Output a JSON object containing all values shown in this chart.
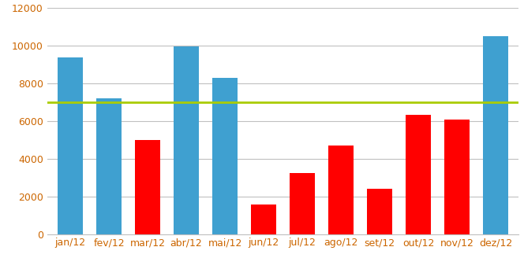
{
  "categories": [
    "jan/12",
    "fev/12",
    "mar/12",
    "abr/12",
    "mai/12",
    "jun/12",
    "jul/12",
    "ago/12",
    "set/12",
    "out/12",
    "nov/12",
    "dez/12"
  ],
  "values": [
    9400,
    7200,
    5000,
    9950,
    8300,
    1550,
    3250,
    4700,
    2400,
    6350,
    6100,
    10500
  ],
  "target": 7000,
  "color_above": "#3FA0D0",
  "color_below": "#FF0000",
  "target_color": "#AACC00",
  "ylim": [
    0,
    12000
  ],
  "yticks": [
    0,
    2000,
    4000,
    6000,
    8000,
    10000,
    12000
  ],
  "background_color": "#FFFFFF",
  "grid_color": "#C0C0C0",
  "target_linewidth": 2.0,
  "bar_width": 0.65,
  "figsize": [
    6.64,
    3.42
  ],
  "dpi": 100,
  "tick_fontsize": 9,
  "tick_color": "#CC6600"
}
